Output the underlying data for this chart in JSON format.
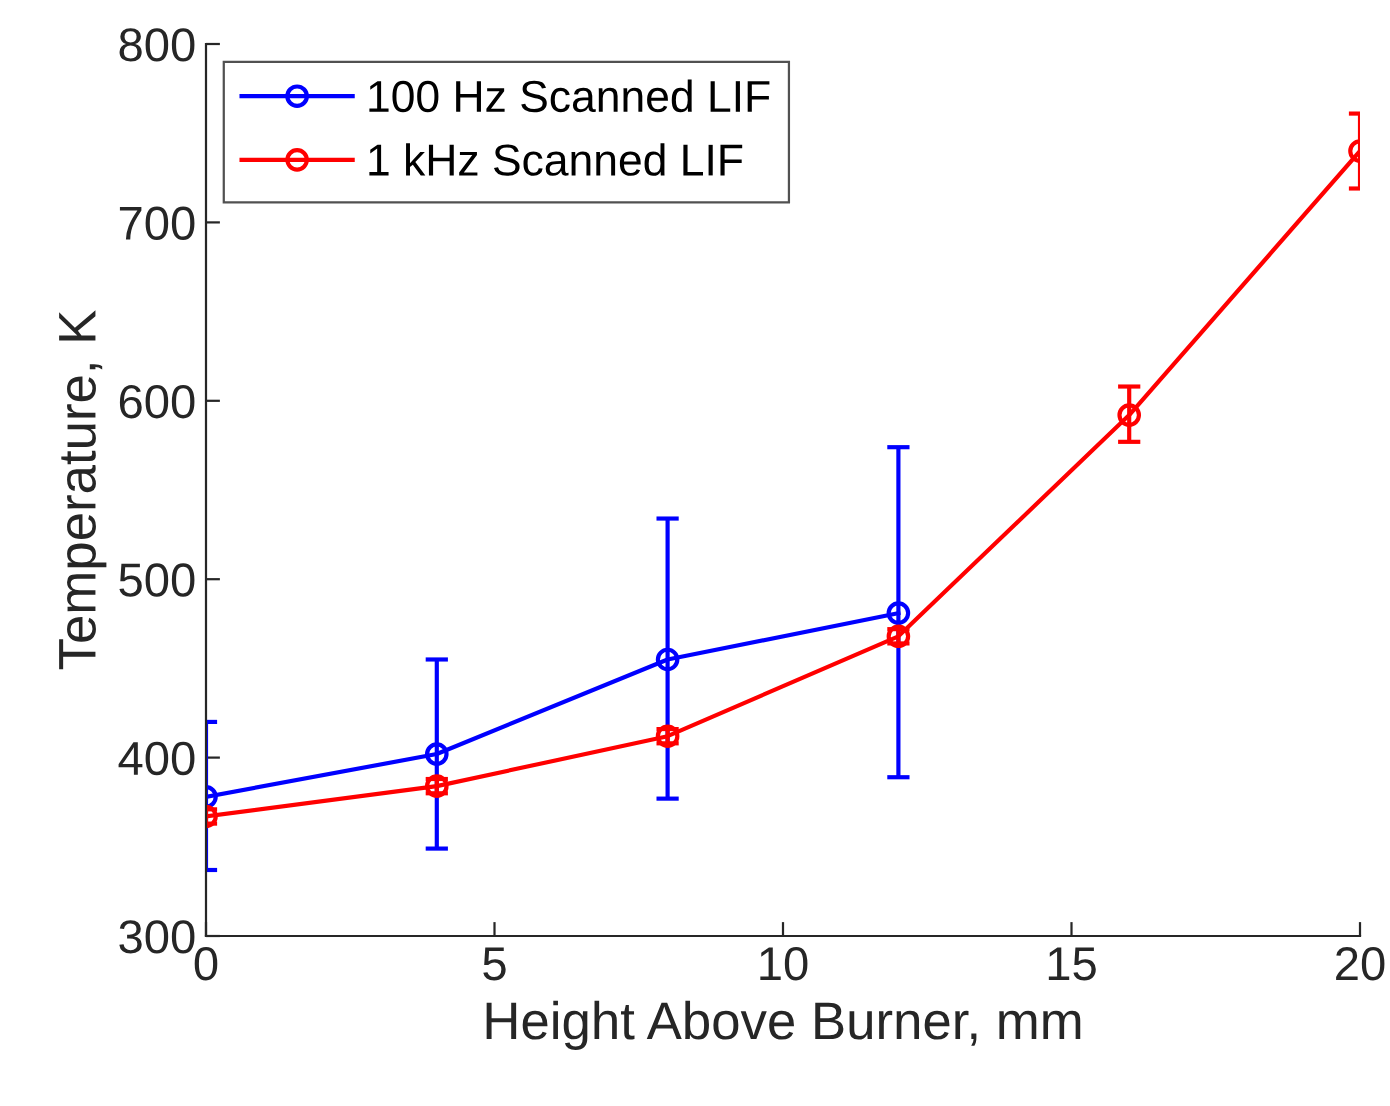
{
  "chart_data": {
    "type": "line",
    "xlabel": "Height Above Burner, mm",
    "ylabel": "Temperature, K",
    "xlim": [
      0,
      20
    ],
    "xticks": [
      0,
      5,
      10,
      15,
      20
    ],
    "ylim": [
      300,
      800
    ],
    "yticks": [
      300,
      400,
      500,
      600,
      700,
      800
    ],
    "grid": false,
    "legend": "top left",
    "marker": "circle",
    "line_style": "solid",
    "series": [
      {
        "name": "100 Hz Scanned LIF",
        "color": "#0000ff",
        "x": [
          0,
          4,
          8,
          12
        ],
        "values": [
          378,
          402,
          455,
          481
        ],
        "errors": [
          [
            337,
            420
          ],
          [
            349,
            455
          ],
          [
            377,
            534
          ],
          [
            389,
            574
          ]
        ]
      },
      {
        "name": "1 kHz Scanned LIF",
        "color": "#ff0000",
        "x": [
          0,
          4,
          8,
          12,
          16,
          20
        ],
        "values": [
          367,
          384,
          412,
          468,
          592,
          740
        ],
        "errors": [
          [
            363,
            371
          ],
          [
            380,
            388
          ],
          [
            408,
            416
          ],
          [
            464,
            472
          ],
          [
            577,
            608
          ],
          [
            719,
            761
          ]
        ]
      }
    ]
  }
}
